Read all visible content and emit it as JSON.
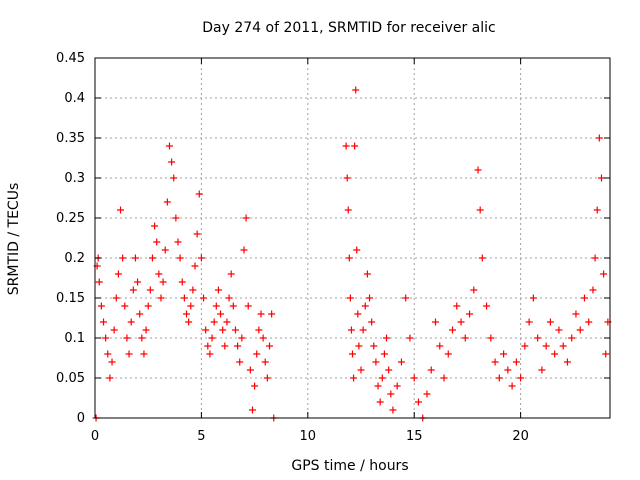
{
  "chart_data": {
    "type": "scatter",
    "title": "Day 274 of 2011, SRMTID for receiver alic",
    "xlabel": "GPS time / hours",
    "ylabel": "SRMTID / TECUs",
    "xlim": [
      0,
      24.2
    ],
    "ylim": [
      0,
      0.45
    ],
    "x_ticks": [
      0,
      5,
      10,
      15,
      20
    ],
    "x_tick_labels": [
      "0",
      "5",
      "10",
      "15",
      "20"
    ],
    "y_ticks": [
      0,
      0.05,
      0.1,
      0.15,
      0.2,
      0.25,
      0.3,
      0.35,
      0.4,
      0.45
    ],
    "y_tick_labels": [
      "0",
      "0.05",
      "0.1",
      "0.15",
      "0.2",
      "0.25",
      "0.3",
      "0.35",
      "0.4",
      "0.45"
    ],
    "grid": true,
    "marker": "+",
    "series": [
      {
        "name": "SRMTID",
        "color": "#ff0000",
        "points": [
          [
            0.05,
            0.0
          ],
          [
            0.1,
            0.19
          ],
          [
            0.15,
            0.2
          ],
          [
            0.2,
            0.17
          ],
          [
            0.3,
            0.14
          ],
          [
            0.4,
            0.12
          ],
          [
            0.5,
            0.1
          ],
          [
            0.6,
            0.08
          ],
          [
            0.7,
            0.05
          ],
          [
            0.8,
            0.07
          ],
          [
            0.9,
            0.11
          ],
          [
            1.0,
            0.15
          ],
          [
            1.1,
            0.18
          ],
          [
            1.2,
            0.26
          ],
          [
            1.3,
            0.2
          ],
          [
            1.4,
            0.14
          ],
          [
            1.5,
            0.1
          ],
          [
            1.6,
            0.08
          ],
          [
            1.7,
            0.12
          ],
          [
            1.8,
            0.16
          ],
          [
            1.9,
            0.2
          ],
          [
            2.0,
            0.17
          ],
          [
            2.1,
            0.13
          ],
          [
            2.2,
            0.1
          ],
          [
            2.3,
            0.08
          ],
          [
            2.4,
            0.11
          ],
          [
            2.5,
            0.14
          ],
          [
            2.6,
            0.16
          ],
          [
            2.7,
            0.2
          ],
          [
            2.8,
            0.24
          ],
          [
            2.9,
            0.22
          ],
          [
            3.0,
            0.18
          ],
          [
            3.1,
            0.15
          ],
          [
            3.2,
            0.17
          ],
          [
            3.3,
            0.21
          ],
          [
            3.4,
            0.27
          ],
          [
            3.5,
            0.34
          ],
          [
            3.6,
            0.32
          ],
          [
            3.7,
            0.3
          ],
          [
            3.8,
            0.25
          ],
          [
            3.9,
            0.22
          ],
          [
            4.0,
            0.2
          ],
          [
            4.1,
            0.17
          ],
          [
            4.2,
            0.15
          ],
          [
            4.3,
            0.13
          ],
          [
            4.4,
            0.12
          ],
          [
            4.5,
            0.14
          ],
          [
            4.6,
            0.16
          ],
          [
            4.7,
            0.19
          ],
          [
            4.8,
            0.23
          ],
          [
            4.9,
            0.28
          ],
          [
            5.0,
            0.2
          ],
          [
            5.1,
            0.15
          ],
          [
            5.2,
            0.11
          ],
          [
            5.3,
            0.09
          ],
          [
            5.4,
            0.08
          ],
          [
            5.5,
            0.1
          ],
          [
            5.6,
            0.12
          ],
          [
            5.7,
            0.14
          ],
          [
            5.8,
            0.16
          ],
          [
            5.9,
            0.13
          ],
          [
            6.0,
            0.11
          ],
          [
            6.1,
            0.09
          ],
          [
            6.2,
            0.12
          ],
          [
            6.3,
            0.15
          ],
          [
            6.4,
            0.18
          ],
          [
            6.5,
            0.14
          ],
          [
            6.6,
            0.11
          ],
          [
            6.7,
            0.09
          ],
          [
            6.8,
            0.07
          ],
          [
            6.9,
            0.1
          ],
          [
            7.0,
            0.21
          ],
          [
            7.1,
            0.25
          ],
          [
            7.2,
            0.14
          ],
          [
            7.3,
            0.06
          ],
          [
            7.4,
            0.01
          ],
          [
            7.5,
            0.04
          ],
          [
            7.6,
            0.08
          ],
          [
            7.7,
            0.11
          ],
          [
            7.8,
            0.13
          ],
          [
            7.9,
            0.1
          ],
          [
            8.0,
            0.07
          ],
          [
            8.1,
            0.05
          ],
          [
            8.2,
            0.09
          ],
          [
            8.3,
            0.13
          ],
          [
            8.4,
            0.0
          ],
          [
            11.8,
            0.34
          ],
          [
            11.85,
            0.3
          ],
          [
            11.9,
            0.26
          ],
          [
            11.95,
            0.2
          ],
          [
            12.0,
            0.15
          ],
          [
            12.05,
            0.11
          ],
          [
            12.1,
            0.08
          ],
          [
            12.15,
            0.05
          ],
          [
            12.2,
            0.34
          ],
          [
            12.25,
            0.41
          ],
          [
            12.3,
            0.21
          ],
          [
            12.35,
            0.13
          ],
          [
            12.4,
            0.09
          ],
          [
            12.5,
            0.06
          ],
          [
            12.6,
            0.11
          ],
          [
            12.7,
            0.14
          ],
          [
            12.8,
            0.18
          ],
          [
            12.9,
            0.15
          ],
          [
            13.0,
            0.12
          ],
          [
            13.1,
            0.09
          ],
          [
            13.2,
            0.07
          ],
          [
            13.3,
            0.04
          ],
          [
            13.4,
            0.02
          ],
          [
            13.5,
            0.05
          ],
          [
            13.6,
            0.08
          ],
          [
            13.7,
            0.1
          ],
          [
            13.8,
            0.06
          ],
          [
            13.9,
            0.03
          ],
          [
            14.0,
            0.01
          ],
          [
            14.2,
            0.04
          ],
          [
            14.4,
            0.07
          ],
          [
            14.6,
            0.15
          ],
          [
            14.8,
            0.1
          ],
          [
            15.0,
            0.05
          ],
          [
            15.2,
            0.02
          ],
          [
            15.4,
            0.0
          ],
          [
            15.6,
            0.03
          ],
          [
            15.8,
            0.06
          ],
          [
            16.0,
            0.12
          ],
          [
            16.2,
            0.09
          ],
          [
            16.4,
            0.05
          ],
          [
            16.6,
            0.08
          ],
          [
            16.8,
            0.11
          ],
          [
            17.0,
            0.14
          ],
          [
            17.2,
            0.12
          ],
          [
            17.4,
            0.1
          ],
          [
            17.6,
            0.13
          ],
          [
            17.8,
            0.16
          ],
          [
            18.0,
            0.31
          ],
          [
            18.1,
            0.26
          ],
          [
            18.2,
            0.2
          ],
          [
            18.4,
            0.14
          ],
          [
            18.6,
            0.1
          ],
          [
            18.8,
            0.07
          ],
          [
            19.0,
            0.05
          ],
          [
            19.2,
            0.08
          ],
          [
            19.4,
            0.06
          ],
          [
            19.6,
            0.04
          ],
          [
            19.8,
            0.07
          ],
          [
            20.0,
            0.05
          ],
          [
            20.2,
            0.09
          ],
          [
            20.4,
            0.12
          ],
          [
            20.6,
            0.15
          ],
          [
            20.8,
            0.1
          ],
          [
            21.0,
            0.06
          ],
          [
            21.2,
            0.09
          ],
          [
            21.4,
            0.12
          ],
          [
            21.6,
            0.08
          ],
          [
            21.8,
            0.11
          ],
          [
            22.0,
            0.09
          ],
          [
            22.2,
            0.07
          ],
          [
            22.4,
            0.1
          ],
          [
            22.6,
            0.13
          ],
          [
            22.8,
            0.11
          ],
          [
            23.0,
            0.15
          ],
          [
            23.2,
            0.12
          ],
          [
            23.4,
            0.16
          ],
          [
            23.5,
            0.2
          ],
          [
            23.6,
            0.26
          ],
          [
            23.7,
            0.35
          ],
          [
            23.8,
            0.3
          ],
          [
            23.9,
            0.18
          ],
          [
            24.0,
            0.08
          ],
          [
            24.1,
            0.12
          ]
        ]
      }
    ]
  }
}
